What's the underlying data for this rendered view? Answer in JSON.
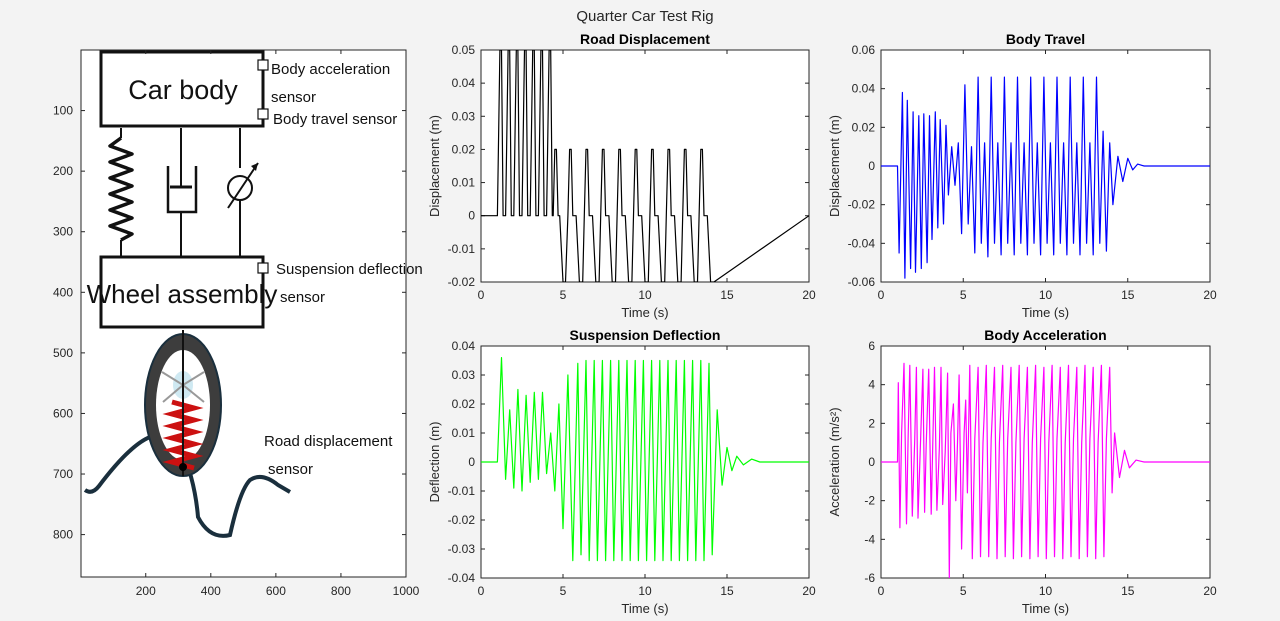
{
  "figure": {
    "title": "Quarter Car Test Rig"
  },
  "schematic": {
    "labels": {
      "car_body": "Car body",
      "wheel_assembly": "Wheel assembly",
      "body_accel_line1": "Body acceleration",
      "body_accel_line2": "sensor",
      "body_travel": "Body travel sensor",
      "susp_line1": "Suspension deflection",
      "susp_line2": "sensor",
      "road_line1": "Road displacement",
      "road_line2": "sensor"
    },
    "xticks": [
      200,
      400,
      600,
      800,
      1000
    ],
    "yticks": [
      100,
      200,
      300,
      400,
      500,
      600,
      700,
      800
    ],
    "xlim": [
      1,
      1000
    ],
    "ylim": [
      0,
      870
    ]
  },
  "chart_data": [
    {
      "type": "line",
      "title": "Road Displacement",
      "xlabel": "Time (s)",
      "ylabel": "Displacement (m)",
      "xlim": [
        0,
        20
      ],
      "ylim": [
        -0.02,
        0.05
      ],
      "xticks": [
        0,
        5,
        10,
        15,
        20
      ],
      "yticks": [
        -0.02,
        -0.01,
        0,
        0.01,
        0.02,
        0.03,
        0.04,
        0.05
      ],
      "ytick_labels": [
        "-0.02",
        "-0.01",
        "0",
        "0.01",
        "0.02",
        "0.03",
        "0.04",
        "0.05"
      ],
      "color": "#000000",
      "series": [
        {
          "x": [
            0,
            1,
            1.15,
            1.25,
            1.35,
            1.5,
            1.65,
            1.75,
            1.85,
            2,
            2.15,
            2.25,
            2.35,
            2.5,
            2.65,
            2.75,
            2.85,
            3,
            3.15,
            3.25,
            3.35,
            3.5,
            3.65,
            3.75,
            3.85,
            4,
            4.15,
            4.25,
            4.35,
            4.4,
            4.5,
            4.6,
            4.7,
            4.8,
            5,
            5.15,
            5.3,
            5.4,
            5.5,
            5.6,
            5.8,
            6,
            6.2,
            6.3,
            6.4,
            6.5,
            6.6,
            6.8,
            7,
            7.2,
            7.3,
            7.4,
            7.5,
            7.6,
            7.8,
            8,
            8.2,
            8.3,
            8.4,
            8.5,
            8.6,
            8.8,
            9,
            9.2,
            9.3,
            9.4,
            9.5,
            9.6,
            9.8,
            10,
            10.2,
            10.3,
            10.4,
            10.5,
            10.6,
            10.8,
            11,
            11.2,
            11.3,
            11.4,
            11.5,
            11.6,
            11.8,
            12,
            12.2,
            12.3,
            12.4,
            12.5,
            12.6,
            12.8,
            13,
            13.2,
            13.3,
            13.4,
            13.5,
            13.6,
            13.8,
            14,
            14.2,
            20
          ],
          "y": [
            0,
            0,
            0.05,
            0.05,
            0,
            0,
            0.05,
            0.05,
            0,
            0,
            0.05,
            0.05,
            0,
            0,
            0.05,
            0.05,
            0,
            0,
            0.05,
            0.05,
            0,
            0,
            0.05,
            0.05,
            0,
            0,
            0.05,
            0.05,
            0,
            0,
            0.02,
            0.02,
            0,
            0,
            -0.02,
            -0.02,
            0,
            0.02,
            0.02,
            0,
            0,
            -0.02,
            -0.02,
            0,
            0.02,
            0.02,
            0,
            0,
            -0.02,
            -0.02,
            0,
            0.02,
            0.02,
            0,
            0,
            -0.02,
            -0.02,
            0,
            0.02,
            0.02,
            0,
            0,
            -0.02,
            -0.02,
            0,
            0.02,
            0.02,
            0,
            0,
            -0.02,
            -0.02,
            0,
            0.02,
            0.02,
            0,
            0,
            -0.02,
            -0.02,
            0,
            0.02,
            0.02,
            0,
            0,
            -0.02,
            -0.02,
            0,
            0.02,
            0.02,
            0,
            0,
            -0.02,
            -0.02,
            0,
            0.02,
            0.02,
            0,
            0,
            -0.02,
            -0.02,
            0
          ]
        }
      ]
    },
    {
      "type": "line",
      "title": "Body Travel",
      "xlabel": "Time (s)",
      "ylabel": "Displacement (m)",
      "xlim": [
        0,
        20
      ],
      "ylim": [
        -0.06,
        0.06
      ],
      "xticks": [
        0,
        5,
        10,
        15,
        20
      ],
      "yticks": [
        -0.06,
        -0.04,
        -0.02,
        0,
        0.02,
        0.04,
        0.06
      ],
      "ytick_labels": [
        "-0.06",
        "-0.04",
        "-0.02",
        "0",
        "0.02",
        "0.04",
        "0.06"
      ],
      "color": "#0000ff",
      "series": [
        {
          "x": [
            0,
            1,
            1.1,
            1.3,
            1.45,
            1.6,
            1.8,
            1.95,
            2.1,
            2.3,
            2.45,
            2.6,
            2.8,
            2.95,
            3.1,
            3.3,
            3.45,
            3.6,
            3.8,
            3.95,
            4.1,
            4.3,
            4.5,
            4.7,
            4.9,
            5.1,
            5.3,
            5.5,
            5.7,
            5.9,
            6.1,
            6.3,
            6.5,
            6.7,
            6.9,
            7.1,
            7.3,
            7.5,
            7.7,
            7.9,
            8.1,
            8.3,
            8.5,
            8.7,
            8.9,
            9.1,
            9.3,
            9.5,
            9.7,
            9.9,
            10.1,
            10.3,
            10.5,
            10.7,
            10.9,
            11.1,
            11.3,
            11.5,
            11.7,
            11.9,
            12.1,
            12.3,
            12.5,
            12.7,
            12.9,
            13.1,
            13.3,
            13.5,
            13.7,
            13.9,
            14.1,
            14.4,
            14.7,
            15,
            15.3,
            15.6,
            16,
            20
          ],
          "y": [
            0,
            0,
            -0.045,
            0.038,
            -0.058,
            0.034,
            -0.053,
            0.028,
            -0.055,
            0.026,
            -0.053,
            0.027,
            -0.05,
            0.026,
            -0.038,
            0.028,
            -0.032,
            0.024,
            -0.03,
            0.021,
            -0.015,
            0.01,
            -0.01,
            0.012,
            -0.035,
            0.042,
            -0.03,
            0.01,
            -0.045,
            0.046,
            -0.04,
            0.012,
            -0.047,
            0.046,
            -0.04,
            0.012,
            -0.046,
            0.046,
            -0.04,
            0.012,
            -0.046,
            0.046,
            -0.04,
            0.012,
            -0.046,
            0.046,
            -0.04,
            0.012,
            -0.046,
            0.046,
            -0.04,
            0.012,
            -0.046,
            0.046,
            -0.04,
            0.012,
            -0.046,
            0.046,
            -0.04,
            0.012,
            -0.046,
            0.046,
            -0.04,
            0.012,
            -0.046,
            0.046,
            -0.04,
            0.018,
            -0.044,
            0.012,
            -0.02,
            0.005,
            -0.008,
            0.004,
            -0.002,
            0.001,
            0,
            0
          ]
        }
      ]
    },
    {
      "type": "line",
      "title": "Suspension Deflection",
      "xlabel": "Time (s)",
      "ylabel": "Deflection (m)",
      "xlim": [
        0,
        20
      ],
      "ylim": [
        -0.04,
        0.04
      ],
      "xticks": [
        0,
        5,
        10,
        15,
        20
      ],
      "yticks": [
        -0.04,
        -0.03,
        -0.02,
        -0.01,
        0,
        0.01,
        0.02,
        0.03,
        0.04
      ],
      "ytick_labels": [
        "-0.04",
        "-0.03",
        "-0.02",
        "-0.01",
        "0",
        "0.01",
        "0.02",
        "0.03",
        "0.04"
      ],
      "color": "#00ff00",
      "series": [
        {
          "x": [
            0,
            1,
            1.25,
            1.5,
            1.75,
            2,
            2.25,
            2.5,
            2.75,
            3,
            3.25,
            3.5,
            3.75,
            4,
            4.25,
            4.5,
            4.75,
            5,
            5.3,
            5.6,
            5.9,
            6.1,
            6.4,
            6.6,
            6.9,
            7.1,
            7.4,
            7.6,
            7.9,
            8.1,
            8.4,
            8.6,
            8.9,
            9.1,
            9.4,
            9.6,
            9.9,
            10.1,
            10.4,
            10.6,
            10.9,
            11.1,
            11.4,
            11.6,
            11.9,
            12.1,
            12.4,
            12.6,
            12.9,
            13.1,
            13.4,
            13.6,
            13.9,
            14.1,
            14.4,
            14.7,
            15,
            15.3,
            15.6,
            16,
            16.5,
            17,
            20
          ],
          "y": [
            0,
            0,
            0.036,
            -0.006,
            0.018,
            -0.009,
            0.025,
            -0.01,
            0.023,
            -0.007,
            0.024,
            -0.006,
            0.024,
            -0.004,
            0.01,
            -0.01,
            0.02,
            -0.023,
            0.03,
            -0.034,
            0.034,
            -0.032,
            0.035,
            -0.034,
            0.035,
            -0.034,
            0.035,
            -0.034,
            0.035,
            -0.034,
            0.035,
            -0.034,
            0.035,
            -0.034,
            0.035,
            -0.034,
            0.035,
            -0.034,
            0.035,
            -0.034,
            0.035,
            -0.034,
            0.035,
            -0.034,
            0.035,
            -0.034,
            0.035,
            -0.034,
            0.035,
            -0.034,
            0.035,
            -0.034,
            0.034,
            -0.032,
            0.018,
            -0.008,
            0.005,
            -0.003,
            0.002,
            -0.001,
            0.001,
            0,
            0
          ]
        }
      ]
    },
    {
      "type": "line",
      "title": "Body Acceleration",
      "xlabel": "Time (s)",
      "ylabel": "Acceleration (m/s²)",
      "xlim": [
        0,
        20
      ],
      "ylim": [
        -6,
        6
      ],
      "xticks": [
        0,
        5,
        10,
        15,
        20
      ],
      "yticks": [
        -6,
        -4,
        -2,
        0,
        2,
        4,
        6
      ],
      "ytick_labels": [
        "-6",
        "-4",
        "-2",
        "0",
        "2",
        "4",
        "6"
      ],
      "color": "#ff00ff",
      "series": [
        {
          "x": [
            0,
            1,
            1.05,
            1.15,
            1.25,
            1.4,
            1.55,
            1.65,
            1.75,
            1.9,
            2.05,
            2.15,
            2.25,
            2.4,
            2.55,
            2.65,
            2.75,
            2.9,
            3.05,
            3.15,
            3.25,
            3.4,
            3.55,
            3.65,
            3.75,
            3.9,
            4.05,
            4.15,
            4.25,
            4.4,
            4.55,
            4.65,
            4.75,
            4.9,
            5.05,
            5.15,
            5.25,
            5.4,
            5.55,
            5.7,
            5.9,
            6.05,
            6.2,
            6.4,
            6.55,
            6.7,
            6.9,
            7.05,
            7.2,
            7.4,
            7.55,
            7.7,
            7.9,
            8.05,
            8.2,
            8.4,
            8.55,
            8.7,
            8.9,
            9.05,
            9.2,
            9.4,
            9.55,
            9.7,
            9.9,
            10.05,
            10.2,
            10.4,
            10.55,
            10.7,
            10.9,
            11.05,
            11.2,
            11.4,
            11.55,
            11.7,
            11.9,
            12.05,
            12.2,
            12.4,
            12.55,
            12.7,
            12.9,
            13.05,
            13.2,
            13.4,
            13.55,
            13.7,
            13.9,
            14.05,
            14.2,
            14.5,
            14.8,
            15.1,
            15.5,
            16,
            20
          ],
          "y": [
            0,
            0,
            4.1,
            -3.4,
            1.5,
            5.1,
            -3.2,
            1.2,
            5,
            -2.8,
            1.1,
            4.9,
            -2.9,
            1,
            4.8,
            -2.6,
            0.9,
            4.8,
            -2.7,
            1,
            4.9,
            -2.5,
            0.8,
            4.9,
            -2.2,
            0.5,
            4.6,
            -6,
            1.5,
            3,
            -2,
            1,
            4.5,
            -4.5,
            1.5,
            3.2,
            -1.6,
            5,
            -5,
            1.2,
            4.9,
            -4.9,
            1,
            5,
            -4.9,
            1.2,
            4.9,
            -5,
            1,
            5,
            -4.9,
            1.2,
            4.9,
            -5,
            1,
            5,
            -4.9,
            1.2,
            4.9,
            -5,
            1,
            5,
            -4.9,
            1.2,
            4.9,
            -5,
            1,
            5,
            -4.9,
            1.2,
            4.9,
            -5,
            1,
            5,
            -4.9,
            1.2,
            4.9,
            -5,
            1,
            5,
            -4.9,
            1.2,
            4.9,
            -5,
            1,
            5,
            -4.9,
            1.2,
            4.9,
            -1.6,
            1.5,
            -0.8,
            0.6,
            -0.3,
            0.1,
            0,
            0
          ]
        }
      ]
    }
  ]
}
